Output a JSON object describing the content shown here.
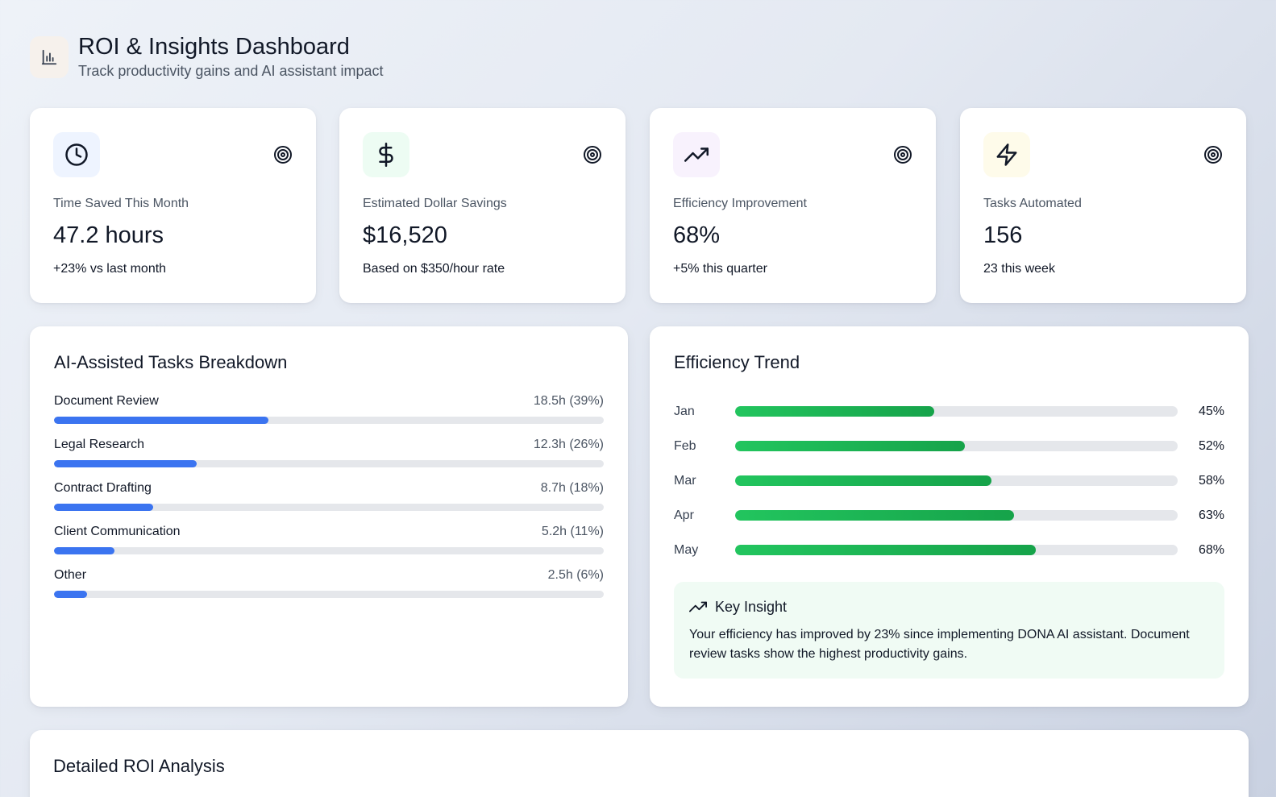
{
  "header": {
    "title": "ROI & Insights Dashboard",
    "subtitle": "Track productivity gains and AI assistant impact",
    "icon": "bar-chart-icon"
  },
  "stats": [
    {
      "icon": "clock-icon",
      "icon_bg": "#eef4ff",
      "label": "Time Saved This Month",
      "value": "47.2 hours",
      "sub": "+23% vs last month"
    },
    {
      "icon": "dollar-icon",
      "icon_bg": "#edfcf3",
      "label": "Estimated Dollar Savings",
      "value": "$16,520",
      "sub": "Based on $350/hour rate"
    },
    {
      "icon": "trending-up-icon",
      "icon_bg": "#f8f2fd",
      "label": "Efficiency Improvement",
      "value": "68%",
      "sub": "+5% this quarter"
    },
    {
      "icon": "zap-icon",
      "icon_bg": "#fefbea",
      "label": "Tasks Automated",
      "value": "156",
      "sub": "23 this week"
    }
  ],
  "tasks": {
    "title": "AI-Assisted Tasks Breakdown",
    "items": [
      {
        "name": "Document Review",
        "value": "18.5h (39%)",
        "percent": 39
      },
      {
        "name": "Legal Research",
        "value": "12.3h (26%)",
        "percent": 26
      },
      {
        "name": "Contract Drafting",
        "value": "8.7h (18%)",
        "percent": 18
      },
      {
        "name": "Client Communication",
        "value": "5.2h (11%)",
        "percent": 11
      },
      {
        "name": "Other",
        "value": "2.5h (6%)",
        "percent": 6
      }
    ]
  },
  "trend": {
    "title": "Efficiency Trend",
    "months": [
      {
        "month": "Jan",
        "label": "45%",
        "percent": 45
      },
      {
        "month": "Feb",
        "label": "52%",
        "percent": 52
      },
      {
        "month": "Mar",
        "label": "58%",
        "percent": 58
      },
      {
        "month": "Apr",
        "label": "63%",
        "percent": 63
      },
      {
        "month": "May",
        "label": "68%",
        "percent": 68
      }
    ],
    "insight": {
      "title": "Key Insight",
      "text": "Your efficiency has improved by 23% since implementing DONA AI assistant. Document review tasks show the highest productivity gains."
    }
  },
  "detailed": {
    "title": "Detailed ROI Analysis"
  },
  "colors": {
    "accent_blue": "#3b74f0",
    "accent_green": "#22c55e"
  }
}
